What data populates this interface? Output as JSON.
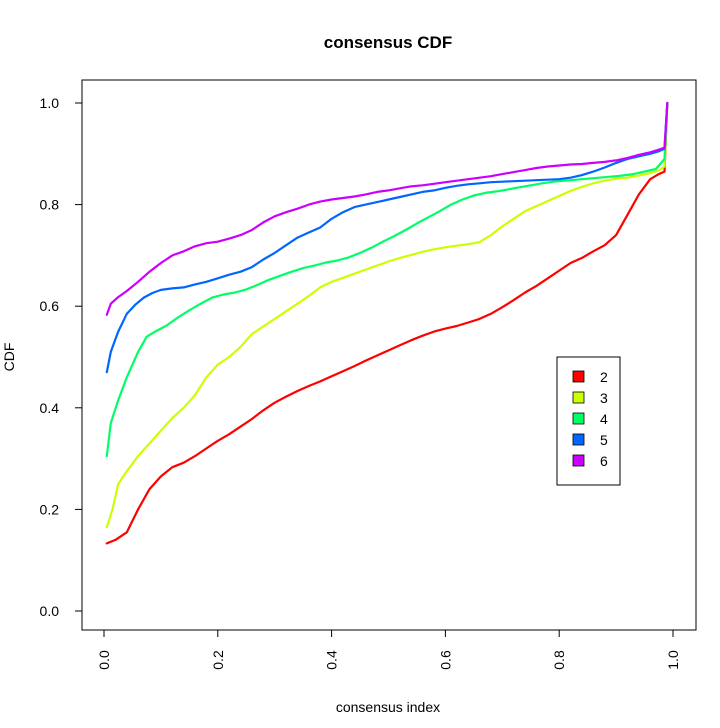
{
  "chart_data": {
    "type": "line",
    "title": "consensus CDF",
    "xlabel": "consensus index",
    "ylabel": "CDF",
    "xlim": [
      0,
      1
    ],
    "ylim": [
      0,
      1
    ],
    "x_ticks": [
      0.0,
      0.2,
      0.4,
      0.6,
      0.8,
      1.0
    ],
    "x_tick_labels": [
      "0.0",
      "0.2",
      "0.4",
      "0.6",
      "0.8",
      "1.0"
    ],
    "y_ticks": [
      0.0,
      0.2,
      0.4,
      0.6,
      0.8,
      1.0
    ],
    "y_tick_labels": [
      "0.0",
      "0.2",
      "0.4",
      "0.6",
      "0.8",
      "1.0"
    ],
    "grid": false,
    "legend_position": "center-right",
    "series": [
      {
        "name": "2",
        "color": "#ff0000",
        "points": [
          [
            0.005,
            0.133
          ],
          [
            0.02,
            0.14
          ],
          [
            0.04,
            0.155
          ],
          [
            0.06,
            0.2
          ],
          [
            0.08,
            0.24
          ],
          [
            0.1,
            0.265
          ],
          [
            0.12,
            0.283
          ],
          [
            0.14,
            0.292
          ],
          [
            0.16,
            0.305
          ],
          [
            0.18,
            0.32
          ],
          [
            0.2,
            0.335
          ],
          [
            0.22,
            0.348
          ],
          [
            0.24,
            0.363
          ],
          [
            0.26,
            0.378
          ],
          [
            0.28,
            0.395
          ],
          [
            0.3,
            0.41
          ],
          [
            0.32,
            0.422
          ],
          [
            0.34,
            0.433
          ],
          [
            0.36,
            0.443
          ],
          [
            0.38,
            0.452
          ],
          [
            0.4,
            0.462
          ],
          [
            0.42,
            0.472
          ],
          [
            0.44,
            0.482
          ],
          [
            0.46,
            0.493
          ],
          [
            0.48,
            0.503
          ],
          [
            0.5,
            0.513
          ],
          [
            0.52,
            0.523
          ],
          [
            0.54,
            0.533
          ],
          [
            0.56,
            0.542
          ],
          [
            0.58,
            0.55
          ],
          [
            0.6,
            0.556
          ],
          [
            0.62,
            0.561
          ],
          [
            0.64,
            0.568
          ],
          [
            0.66,
            0.575
          ],
          [
            0.68,
            0.585
          ],
          [
            0.7,
            0.598
          ],
          [
            0.72,
            0.612
          ],
          [
            0.74,
            0.627
          ],
          [
            0.76,
            0.64
          ],
          [
            0.78,
            0.655
          ],
          [
            0.8,
            0.67
          ],
          [
            0.82,
            0.685
          ],
          [
            0.84,
            0.695
          ],
          [
            0.86,
            0.708
          ],
          [
            0.88,
            0.72
          ],
          [
            0.9,
            0.74
          ],
          [
            0.92,
            0.78
          ],
          [
            0.94,
            0.82
          ],
          [
            0.96,
            0.85
          ],
          [
            0.975,
            0.86
          ],
          [
            0.985,
            0.865
          ],
          [
            0.99,
            1.0
          ]
        ]
      },
      {
        "name": "3",
        "color": "#ccff00",
        "points": [
          [
            0.005,
            0.165
          ],
          [
            0.015,
            0.2
          ],
          [
            0.025,
            0.25
          ],
          [
            0.04,
            0.275
          ],
          [
            0.06,
            0.305
          ],
          [
            0.08,
            0.33
          ],
          [
            0.1,
            0.355
          ],
          [
            0.12,
            0.38
          ],
          [
            0.14,
            0.4
          ],
          [
            0.16,
            0.425
          ],
          [
            0.18,
            0.46
          ],
          [
            0.2,
            0.485
          ],
          [
            0.22,
            0.5
          ],
          [
            0.24,
            0.52
          ],
          [
            0.26,
            0.545
          ],
          [
            0.28,
            0.56
          ],
          [
            0.3,
            0.575
          ],
          [
            0.32,
            0.59
          ],
          [
            0.34,
            0.605
          ],
          [
            0.36,
            0.62
          ],
          [
            0.38,
            0.637
          ],
          [
            0.4,
            0.648
          ],
          [
            0.42,
            0.656
          ],
          [
            0.44,
            0.664
          ],
          [
            0.46,
            0.672
          ],
          [
            0.48,
            0.68
          ],
          [
            0.5,
            0.688
          ],
          [
            0.52,
            0.695
          ],
          [
            0.54,
            0.701
          ],
          [
            0.56,
            0.707
          ],
          [
            0.58,
            0.712
          ],
          [
            0.6,
            0.716
          ],
          [
            0.62,
            0.719
          ],
          [
            0.64,
            0.722
          ],
          [
            0.66,
            0.726
          ],
          [
            0.68,
            0.74
          ],
          [
            0.7,
            0.757
          ],
          [
            0.72,
            0.772
          ],
          [
            0.74,
            0.787
          ],
          [
            0.76,
            0.797
          ],
          [
            0.78,
            0.807
          ],
          [
            0.8,
            0.817
          ],
          [
            0.82,
            0.827
          ],
          [
            0.84,
            0.835
          ],
          [
            0.86,
            0.842
          ],
          [
            0.88,
            0.847
          ],
          [
            0.9,
            0.851
          ],
          [
            0.92,
            0.853
          ],
          [
            0.94,
            0.857
          ],
          [
            0.96,
            0.862
          ],
          [
            0.975,
            0.867
          ],
          [
            0.985,
            0.875
          ],
          [
            0.99,
            1.0
          ]
        ]
      },
      {
        "name": "4",
        "color": "#00ff66",
        "points": [
          [
            0.005,
            0.305
          ],
          [
            0.012,
            0.37
          ],
          [
            0.025,
            0.415
          ],
          [
            0.04,
            0.46
          ],
          [
            0.06,
            0.51
          ],
          [
            0.075,
            0.54
          ],
          [
            0.09,
            0.55
          ],
          [
            0.11,
            0.562
          ],
          [
            0.13,
            0.578
          ],
          [
            0.15,
            0.592
          ],
          [
            0.17,
            0.605
          ],
          [
            0.19,
            0.617
          ],
          [
            0.21,
            0.623
          ],
          [
            0.23,
            0.627
          ],
          [
            0.25,
            0.633
          ],
          [
            0.27,
            0.642
          ],
          [
            0.29,
            0.652
          ],
          [
            0.31,
            0.66
          ],
          [
            0.33,
            0.668
          ],
          [
            0.35,
            0.675
          ],
          [
            0.37,
            0.68
          ],
          [
            0.39,
            0.686
          ],
          [
            0.41,
            0.69
          ],
          [
            0.43,
            0.696
          ],
          [
            0.45,
            0.705
          ],
          [
            0.47,
            0.715
          ],
          [
            0.49,
            0.727
          ],
          [
            0.51,
            0.738
          ],
          [
            0.53,
            0.75
          ],
          [
            0.55,
            0.763
          ],
          [
            0.57,
            0.775
          ],
          [
            0.59,
            0.787
          ],
          [
            0.61,
            0.8
          ],
          [
            0.63,
            0.81
          ],
          [
            0.65,
            0.818
          ],
          [
            0.67,
            0.823
          ],
          [
            0.69,
            0.826
          ],
          [
            0.71,
            0.83
          ],
          [
            0.73,
            0.834
          ],
          [
            0.75,
            0.838
          ],
          [
            0.77,
            0.842
          ],
          [
            0.79,
            0.845
          ],
          [
            0.81,
            0.847
          ],
          [
            0.83,
            0.849
          ],
          [
            0.85,
            0.851
          ],
          [
            0.87,
            0.853
          ],
          [
            0.89,
            0.855
          ],
          [
            0.91,
            0.857
          ],
          [
            0.93,
            0.86
          ],
          [
            0.95,
            0.865
          ],
          [
            0.97,
            0.87
          ],
          [
            0.985,
            0.89
          ],
          [
            0.99,
            1.0
          ]
        ]
      },
      {
        "name": "5",
        "color": "#0066ff",
        "points": [
          [
            0.005,
            0.47
          ],
          [
            0.012,
            0.51
          ],
          [
            0.025,
            0.55
          ],
          [
            0.04,
            0.585
          ],
          [
            0.055,
            0.603
          ],
          [
            0.07,
            0.617
          ],
          [
            0.085,
            0.626
          ],
          [
            0.1,
            0.632
          ],
          [
            0.12,
            0.635
          ],
          [
            0.14,
            0.637
          ],
          [
            0.16,
            0.643
          ],
          [
            0.18,
            0.648
          ],
          [
            0.2,
            0.655
          ],
          [
            0.22,
            0.662
          ],
          [
            0.24,
            0.668
          ],
          [
            0.26,
            0.677
          ],
          [
            0.28,
            0.692
          ],
          [
            0.3,
            0.705
          ],
          [
            0.32,
            0.72
          ],
          [
            0.34,
            0.735
          ],
          [
            0.36,
            0.745
          ],
          [
            0.38,
            0.755
          ],
          [
            0.4,
            0.772
          ],
          [
            0.42,
            0.785
          ],
          [
            0.44,
            0.795
          ],
          [
            0.46,
            0.8
          ],
          [
            0.48,
            0.805
          ],
          [
            0.5,
            0.81
          ],
          [
            0.52,
            0.815
          ],
          [
            0.54,
            0.82
          ],
          [
            0.56,
            0.825
          ],
          [
            0.58,
            0.828
          ],
          [
            0.6,
            0.833
          ],
          [
            0.62,
            0.837
          ],
          [
            0.64,
            0.84
          ],
          [
            0.66,
            0.842
          ],
          [
            0.68,
            0.844
          ],
          [
            0.7,
            0.845
          ],
          [
            0.72,
            0.846
          ],
          [
            0.74,
            0.847
          ],
          [
            0.76,
            0.848
          ],
          [
            0.78,
            0.849
          ],
          [
            0.8,
            0.85
          ],
          [
            0.82,
            0.853
          ],
          [
            0.84,
            0.858
          ],
          [
            0.86,
            0.865
          ],
          [
            0.88,
            0.873
          ],
          [
            0.9,
            0.882
          ],
          [
            0.92,
            0.89
          ],
          [
            0.94,
            0.895
          ],
          [
            0.96,
            0.9
          ],
          [
            0.975,
            0.905
          ],
          [
            0.985,
            0.91
          ],
          [
            0.99,
            1.0
          ]
        ]
      },
      {
        "name": "6",
        "color": "#cc00ff",
        "points": [
          [
            0.005,
            0.583
          ],
          [
            0.012,
            0.605
          ],
          [
            0.025,
            0.618
          ],
          [
            0.04,
            0.63
          ],
          [
            0.06,
            0.648
          ],
          [
            0.08,
            0.668
          ],
          [
            0.1,
            0.685
          ],
          [
            0.12,
            0.7
          ],
          [
            0.14,
            0.708
          ],
          [
            0.16,
            0.718
          ],
          [
            0.18,
            0.724
          ],
          [
            0.2,
            0.727
          ],
          [
            0.22,
            0.733
          ],
          [
            0.24,
            0.74
          ],
          [
            0.26,
            0.75
          ],
          [
            0.28,
            0.765
          ],
          [
            0.3,
            0.777
          ],
          [
            0.32,
            0.785
          ],
          [
            0.34,
            0.792
          ],
          [
            0.36,
            0.8
          ],
          [
            0.38,
            0.806
          ],
          [
            0.4,
            0.81
          ],
          [
            0.42,
            0.813
          ],
          [
            0.44,
            0.816
          ],
          [
            0.46,
            0.82
          ],
          [
            0.48,
            0.825
          ],
          [
            0.5,
            0.828
          ],
          [
            0.52,
            0.832
          ],
          [
            0.54,
            0.836
          ],
          [
            0.56,
            0.838
          ],
          [
            0.58,
            0.841
          ],
          [
            0.6,
            0.844
          ],
          [
            0.62,
            0.847
          ],
          [
            0.64,
            0.85
          ],
          [
            0.66,
            0.853
          ],
          [
            0.68,
            0.856
          ],
          [
            0.7,
            0.86
          ],
          [
            0.72,
            0.864
          ],
          [
            0.74,
            0.868
          ],
          [
            0.76,
            0.872
          ],
          [
            0.78,
            0.875
          ],
          [
            0.8,
            0.877
          ],
          [
            0.82,
            0.879
          ],
          [
            0.84,
            0.88
          ],
          [
            0.86,
            0.882
          ],
          [
            0.88,
            0.884
          ],
          [
            0.9,
            0.887
          ],
          [
            0.92,
            0.892
          ],
          [
            0.94,
            0.898
          ],
          [
            0.96,
            0.903
          ],
          [
            0.975,
            0.908
          ],
          [
            0.985,
            0.912
          ],
          [
            0.99,
            1.0
          ]
        ]
      }
    ]
  }
}
